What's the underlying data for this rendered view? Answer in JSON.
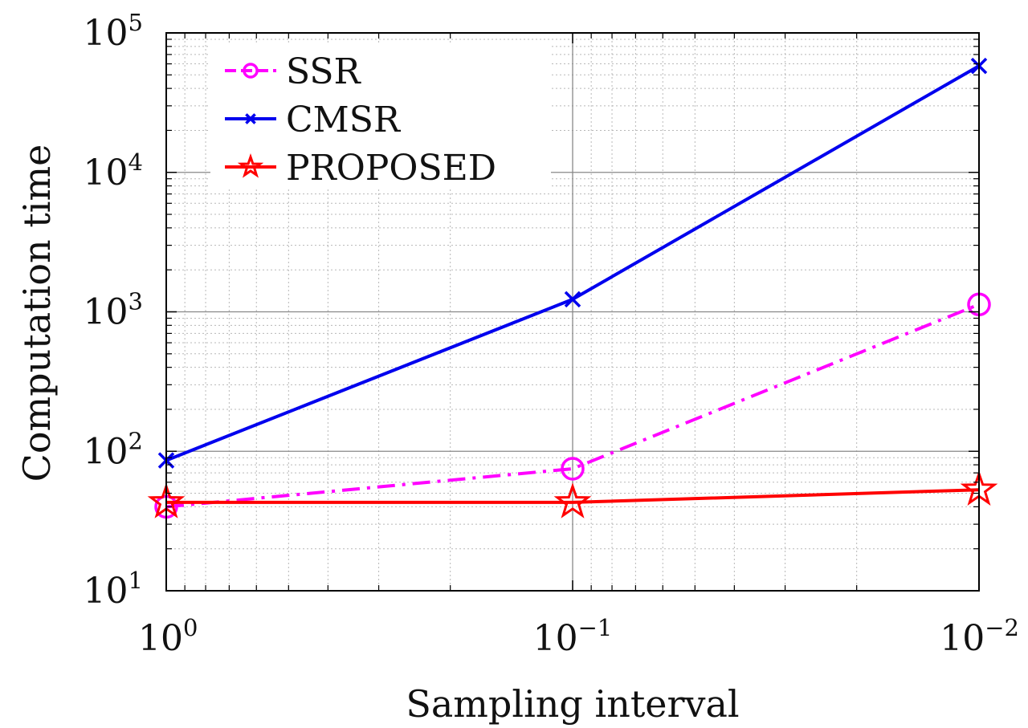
{
  "chart_data": {
    "type": "line",
    "xlabel": "Sampling interval",
    "ylabel": "Computation time",
    "x_scale": "log",
    "x_reversed": true,
    "y_scale": "log",
    "xlim": [
      1,
      0.01
    ],
    "ylim": [
      10,
      100000
    ],
    "grid": true,
    "minor_grid": true,
    "legend_position": "top-left",
    "x": [
      1,
      0.1,
      0.01
    ],
    "x_ticks": [
      {
        "base": "10",
        "exp": "0"
      },
      {
        "base": "10",
        "exp": "−1"
      },
      {
        "base": "10",
        "exp": "−2"
      }
    ],
    "y_ticks": [
      {
        "base": "10",
        "exp": "1"
      },
      {
        "base": "10",
        "exp": "2"
      },
      {
        "base": "10",
        "exp": "3"
      },
      {
        "base": "10",
        "exp": "4"
      },
      {
        "base": "10",
        "exp": "5"
      }
    ],
    "series": [
      {
        "name": "SSR",
        "values": [
          40,
          75,
          1130
        ],
        "color": "#ff00ff",
        "line_style": "dash-dot",
        "marker": "circle"
      },
      {
        "name": "CMSR",
        "values": [
          86,
          1230,
          58000
        ],
        "color": "#0000ee",
        "line_style": "solid",
        "marker": "x"
      },
      {
        "name": "PROPOSED",
        "values": [
          43,
          43,
          53
        ],
        "color": "#ff0000",
        "line_style": "solid",
        "marker": "star"
      }
    ]
  }
}
